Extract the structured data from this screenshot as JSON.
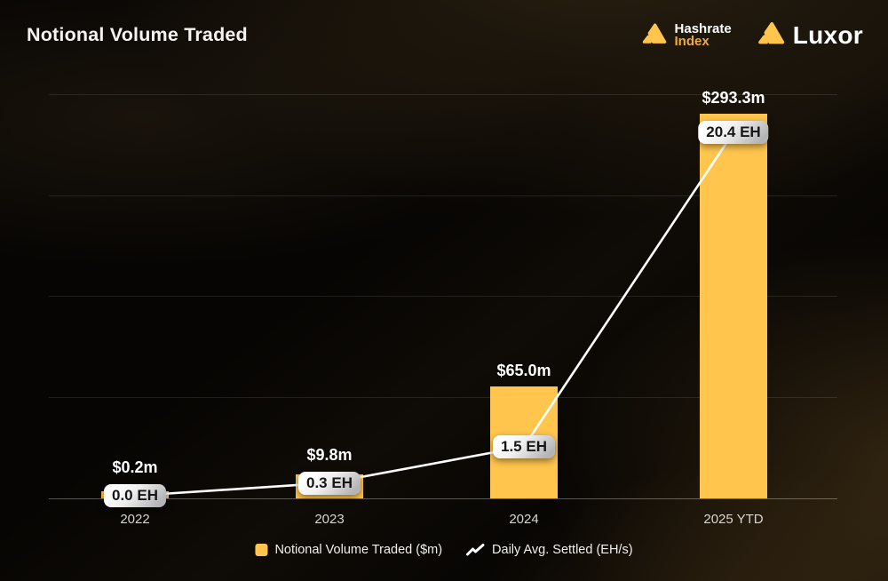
{
  "page": {
    "title": "Notional Volume Traded"
  },
  "logos": {
    "hashrate_index": {
      "name": "Hashrate Index",
      "line1": "Hashrate",
      "line2": "Index"
    },
    "luxor": {
      "name": "Luxor",
      "text": "Luxor"
    }
  },
  "colors": {
    "bar": "#FFC54D",
    "line": "#FFFFFF",
    "accent_text": "#F2A93C",
    "badge_text": "#161616",
    "background": "#070503"
  },
  "chart_data": {
    "type": "bar",
    "title": "Notional Volume Traded",
    "categories": [
      "2022",
      "2023",
      "2024",
      "2025 YTD"
    ],
    "series": [
      {
        "name": "Notional Volume Traded ($m)",
        "type": "bar",
        "unit": "$m",
        "values": [
          0.2,
          9.8,
          65.0,
          293.3
        ],
        "labels": [
          "$0.2m",
          "$9.8m",
          "$65.0m",
          "$293.3m"
        ],
        "color": "#FFC54D"
      },
      {
        "name": "Daily Avg. Settled (EH/s)",
        "type": "line",
        "unit": "EH/s",
        "values": [
          0.0,
          0.3,
          1.5,
          20.4
        ],
        "labels": [
          "0.0 EH",
          "0.3 EH",
          "1.5 EH",
          "20.4 EH"
        ],
        "color": "#FFFFFF"
      }
    ],
    "grid": "horizontal",
    "gridline_count": 5,
    "y_axis_tick_labels_visible": false,
    "legend_position": "bottom",
    "background": "dark"
  },
  "legend": {
    "items": [
      {
        "label": "Notional Volume Traded ($m)",
        "marker": "square"
      },
      {
        "label": "Daily Avg. Settled (EH/s)",
        "marker": "line"
      }
    ]
  }
}
